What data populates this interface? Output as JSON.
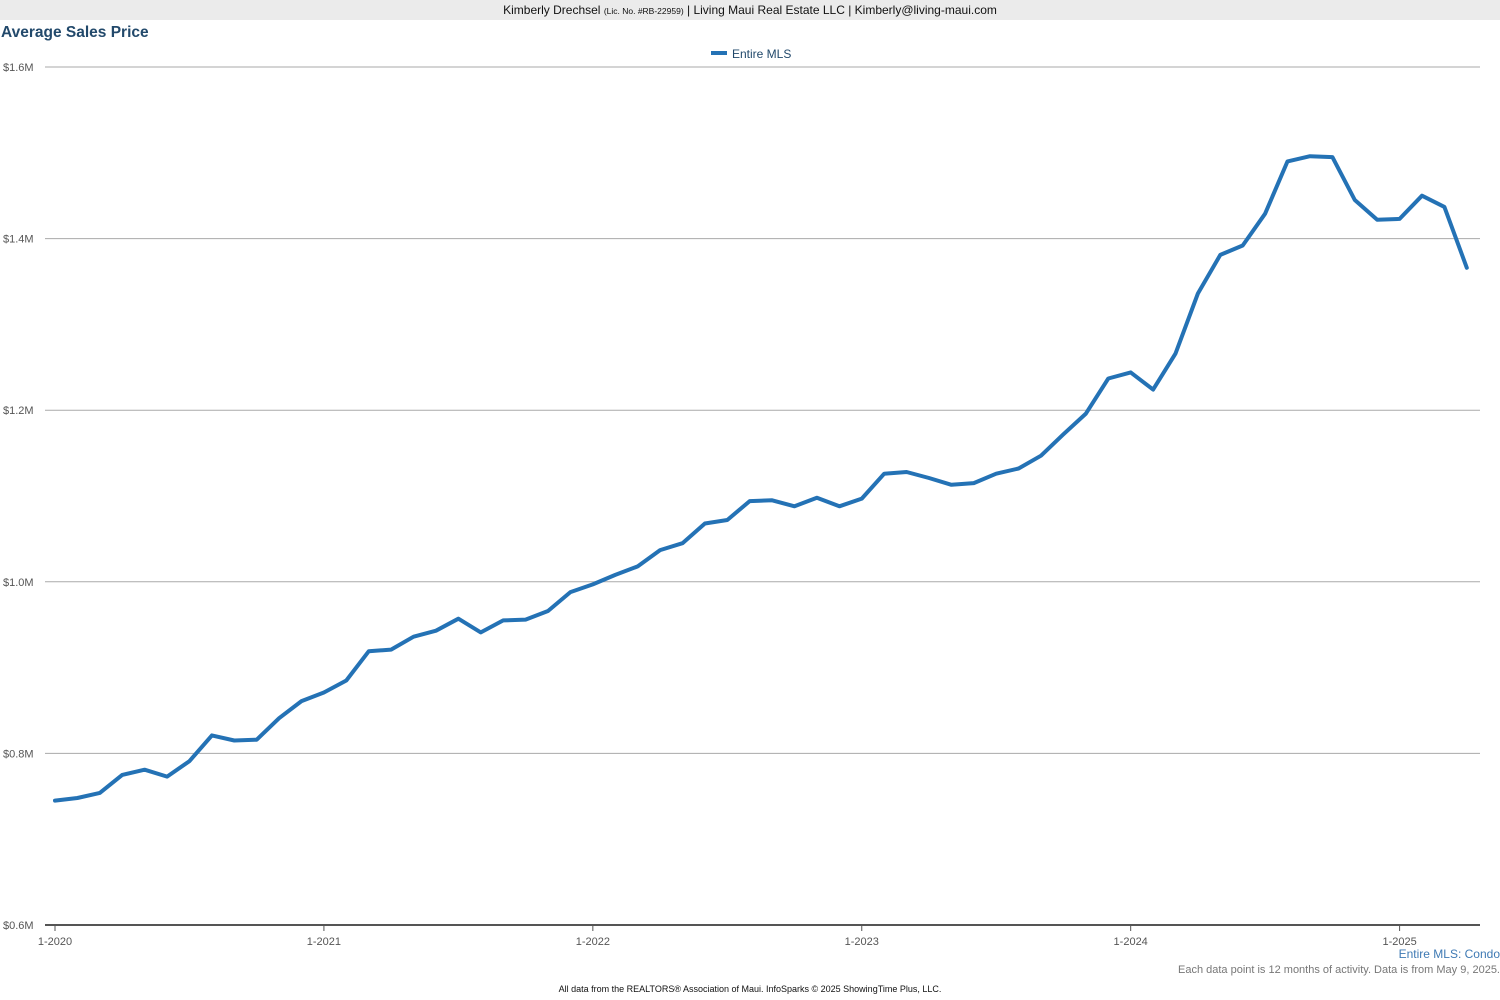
{
  "header": {
    "agent_name": "Kimberly Drechsel",
    "license": "(Lic. No. #RB-22959)",
    "company_contact": "| Living Maui Real Estate LLC | Kimberly@living-maui.com"
  },
  "footnotes": {
    "series_scope": "Entire MLS: Condo",
    "activity_note": "Each data point is 12 months of activity. Data is from May 9, 2025.",
    "source": "All data from the REALTORS® Association of Maui. InfoSparks © 2025 ShowingTime Plus, LLC."
  },
  "colors": {
    "series": "#2472b5",
    "title": "#22496b",
    "grid": "#aaaaaa",
    "axis": "#555555"
  },
  "chart_data": {
    "type": "line",
    "title": "Average Sales Price",
    "xlabel": "",
    "ylabel": "",
    "legend": "top-center",
    "grid": true,
    "ylim": [
      600000,
      1600000
    ],
    "y_ticks": [
      {
        "value": 600000,
        "label": "$0.6M"
      },
      {
        "value": 800000,
        "label": "$0.8M"
      },
      {
        "value": 1000000,
        "label": "$1.0M"
      },
      {
        "value": 1200000,
        "label": "$1.2M"
      },
      {
        "value": 1400000,
        "label": "$1.4M"
      },
      {
        "value": 1600000,
        "label": "$1.6M"
      }
    ],
    "x_ticks": [
      "1-2020",
      "1-2021",
      "1-2022",
      "1-2023",
      "1-2024",
      "1-2025"
    ],
    "series": [
      {
        "name": "Entire MLS",
        "x": [
          "1-2020",
          "2-2020",
          "3-2020",
          "4-2020",
          "5-2020",
          "6-2020",
          "7-2020",
          "8-2020",
          "9-2020",
          "10-2020",
          "11-2020",
          "12-2020",
          "1-2021",
          "2-2021",
          "3-2021",
          "4-2021",
          "5-2021",
          "6-2021",
          "7-2021",
          "8-2021",
          "9-2021",
          "10-2021",
          "11-2021",
          "12-2021",
          "1-2022",
          "2-2022",
          "3-2022",
          "4-2022",
          "5-2022",
          "6-2022",
          "7-2022",
          "8-2022",
          "9-2022",
          "10-2022",
          "11-2022",
          "12-2022",
          "1-2023",
          "2-2023",
          "3-2023",
          "4-2023",
          "5-2023",
          "6-2023",
          "7-2023",
          "8-2023",
          "9-2023",
          "10-2023",
          "11-2023",
          "12-2023",
          "1-2024",
          "2-2024",
          "3-2024",
          "4-2024",
          "5-2024",
          "6-2024",
          "7-2024",
          "8-2024",
          "9-2024",
          "10-2024",
          "11-2024",
          "12-2024",
          "1-2025",
          "2-2025",
          "3-2025",
          "4-2025"
        ],
        "values": [
          745000,
          748000,
          754000,
          775000,
          781000,
          773000,
          791000,
          821000,
          815000,
          816000,
          841000,
          861000,
          871000,
          885000,
          919000,
          921000,
          936000,
          943000,
          957000,
          941000,
          955000,
          956000,
          966000,
          988000,
          997000,
          1008000,
          1018000,
          1037000,
          1045000,
          1068000,
          1072000,
          1094000,
          1095000,
          1088000,
          1098000,
          1088000,
          1097000,
          1126000,
          1128000,
          1121000,
          1113000,
          1115000,
          1126000,
          1132000,
          1147000,
          1172000,
          1196000,
          1237000,
          1244000,
          1224000,
          1266000,
          1336000,
          1381000,
          1392000,
          1429000,
          1490000,
          1496000,
          1495000,
          1445000,
          1422000,
          1423000,
          1450000,
          1437000,
          1366000
        ]
      }
    ]
  }
}
